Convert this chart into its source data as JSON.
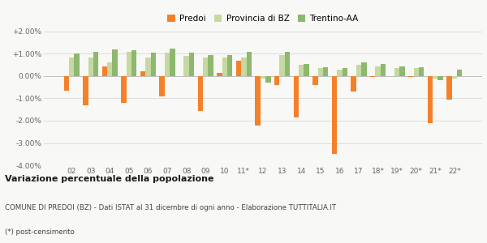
{
  "categories": [
    "02",
    "03",
    "04",
    "05",
    "06",
    "07",
    "08",
    "09",
    "10",
    "11*",
    "12",
    "13",
    "14",
    "15",
    "16",
    "17",
    "18*",
    "19*",
    "20*",
    "21*",
    "22*"
  ],
  "predoi": [
    -0.65,
    -1.3,
    0.45,
    -1.2,
    0.2,
    -0.9,
    0.0,
    -1.55,
    0.15,
    0.7,
    -2.2,
    -0.4,
    -1.85,
    -0.4,
    -3.5,
    -0.7,
    -0.05,
    0.0,
    -0.05,
    -2.1,
    -1.05
  ],
  "provincia_bz": [
    0.85,
    0.85,
    0.6,
    1.1,
    0.85,
    1.05,
    0.9,
    0.85,
    0.85,
    0.85,
    -0.1,
    0.95,
    0.5,
    0.35,
    0.3,
    0.5,
    0.45,
    0.35,
    0.35,
    -0.1,
    -0.1
  ],
  "trentino_aa": [
    1.0,
    1.1,
    1.2,
    1.15,
    1.05,
    1.25,
    1.05,
    0.95,
    0.95,
    1.1,
    -0.3,
    1.1,
    0.55,
    0.4,
    0.35,
    0.6,
    0.55,
    0.45,
    0.4,
    -0.2,
    0.3
  ],
  "color_predoi": "#f4812a",
  "color_provincia": "#c5d9a0",
  "color_trentino": "#8db86e",
  "title": "Variazione percentuale della popolazione",
  "subtitle": "COMUNE DI PREDOI (BZ) - Dati ISTAT al 31 dicembre di ogni anno - Elaborazione TUTTITALIA.IT",
  "footnote": "(*) post-censimento",
  "ylim": [
    -4.0,
    2.0
  ],
  "ytick_vals": [
    -4.0,
    -3.0,
    -2.0,
    -1.0,
    0.0,
    1.0,
    2.0
  ],
  "ytick_labels": [
    "-4.00%",
    "-3.00%",
    "-2.00%",
    "-1.00%",
    "0.00%",
    "+1.00%",
    "+2.00%"
  ],
  "bg_color": "#f8f8f6",
  "grid_color": "#dddddd",
  "legend_labels": [
    "Predoi",
    "Provincia di BZ",
    "Trentino-AA"
  ]
}
